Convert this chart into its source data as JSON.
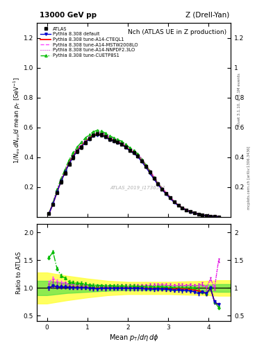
{
  "title_top": "13000 GeV pp",
  "title_right": "Z (Drell-Yan)",
  "plot_title": "Nch (ATLAS UE in Z production)",
  "xlabel": "Mean $p_\\mathrm{T}/d\\eta\\,d\\phi$",
  "ylabel_main": "$1/N_\\mathrm{ev}\\,dN_\\mathrm{ev}/d$ mean $p_\\mathrm{T}$ [GeV$^{-1}$]",
  "ylabel_ratio": "Ratio to ATLAS",
  "watermark": "ATLAS_2019_I1736531",
  "rivet_label": "Rivet 3.1.10, ≥ 3.1M events",
  "arxiv_label": "mcplots.cern.ch [arXiv:1306.3436]",
  "colors": {
    "atlas": "#000000",
    "default": "#0000cc",
    "cteql1": "#ff0000",
    "mstw": "#ff44ff",
    "nnpdf": "#cc00cc",
    "cuetp": "#00bb00"
  },
  "band_yellow": "#ffff44",
  "band_green": "#44dd44",
  "main_ylim": [
    0.0,
    1.3
  ],
  "main_yticks": [
    0.2,
    0.4,
    0.6,
    0.8,
    1.0,
    1.2
  ],
  "ratio_ylim": [
    0.4,
    2.15
  ],
  "ratio_yticks": [
    0.5,
    1.0,
    1.5,
    2.0
  ],
  "xlim": [
    -0.25,
    4.55
  ],
  "xticks": [
    0,
    1,
    2,
    3,
    4
  ],
  "x_main": [
    0.05,
    0.15,
    0.25,
    0.35,
    0.45,
    0.55,
    0.65,
    0.75,
    0.85,
    0.95,
    1.05,
    1.15,
    1.25,
    1.35,
    1.45,
    1.55,
    1.65,
    1.75,
    1.85,
    1.95,
    2.05,
    2.15,
    2.25,
    2.35,
    2.45,
    2.55,
    2.65,
    2.75,
    2.85,
    2.95,
    3.05,
    3.15,
    3.25,
    3.35,
    3.45,
    3.55,
    3.65,
    3.75,
    3.85,
    3.95,
    4.05,
    4.15,
    4.25
  ],
  "atlas_y": [
    0.022,
    0.085,
    0.165,
    0.235,
    0.295,
    0.355,
    0.4,
    0.44,
    0.468,
    0.498,
    0.525,
    0.548,
    0.558,
    0.552,
    0.54,
    0.522,
    0.512,
    0.502,
    0.49,
    0.47,
    0.448,
    0.43,
    0.41,
    0.375,
    0.34,
    0.3,
    0.26,
    0.222,
    0.188,
    0.158,
    0.13,
    0.102,
    0.08,
    0.062,
    0.048,
    0.036,
    0.028,
    0.02,
    0.014,
    0.01,
    0.006,
    0.004,
    0.002
  ],
  "atlas_err": [
    0.004,
    0.006,
    0.008,
    0.01,
    0.011,
    0.012,
    0.012,
    0.012,
    0.011,
    0.011,
    0.011,
    0.011,
    0.011,
    0.011,
    0.01,
    0.01,
    0.01,
    0.01,
    0.009,
    0.009,
    0.009,
    0.009,
    0.008,
    0.008,
    0.008,
    0.007,
    0.007,
    0.006,
    0.006,
    0.005,
    0.005,
    0.004,
    0.004,
    0.003,
    0.003,
    0.003,
    0.002,
    0.002,
    0.002,
    0.001,
    0.001,
    0.001,
    0.001
  ],
  "default_y": [
    0.022,
    0.088,
    0.168,
    0.24,
    0.3,
    0.358,
    0.402,
    0.442,
    0.47,
    0.5,
    0.522,
    0.542,
    0.55,
    0.548,
    0.535,
    0.518,
    0.508,
    0.498,
    0.486,
    0.466,
    0.444,
    0.426,
    0.405,
    0.37,
    0.334,
    0.294,
    0.254,
    0.218,
    0.184,
    0.154,
    0.126,
    0.098,
    0.077,
    0.059,
    0.046,
    0.034,
    0.026,
    0.018,
    0.013,
    0.009,
    0.006,
    0.003,
    0.002
  ],
  "cteql1_y": [
    0.022,
    0.088,
    0.168,
    0.24,
    0.302,
    0.362,
    0.406,
    0.446,
    0.474,
    0.504,
    0.526,
    0.548,
    0.556,
    0.552,
    0.54,
    0.522,
    0.512,
    0.502,
    0.49,
    0.47,
    0.448,
    0.43,
    0.408,
    0.374,
    0.338,
    0.298,
    0.258,
    0.22,
    0.186,
    0.156,
    0.128,
    0.1,
    0.079,
    0.061,
    0.047,
    0.035,
    0.027,
    0.019,
    0.013,
    0.009,
    0.006,
    0.003,
    0.002
  ],
  "mstw_y": [
    0.024,
    0.092,
    0.175,
    0.248,
    0.312,
    0.374,
    0.42,
    0.46,
    0.49,
    0.52,
    0.542,
    0.562,
    0.572,
    0.568,
    0.556,
    0.538,
    0.528,
    0.518,
    0.506,
    0.486,
    0.464,
    0.446,
    0.425,
    0.39,
    0.354,
    0.314,
    0.272,
    0.234,
    0.198,
    0.166,
    0.136,
    0.106,
    0.084,
    0.065,
    0.05,
    0.038,
    0.029,
    0.021,
    0.015,
    0.01,
    0.007,
    0.004,
    0.003
  ],
  "nnpdf_y": [
    0.023,
    0.09,
    0.172,
    0.244,
    0.307,
    0.368,
    0.413,
    0.453,
    0.482,
    0.512,
    0.534,
    0.554,
    0.564,
    0.56,
    0.548,
    0.53,
    0.52,
    0.51,
    0.498,
    0.478,
    0.456,
    0.438,
    0.417,
    0.382,
    0.346,
    0.306,
    0.265,
    0.227,
    0.192,
    0.161,
    0.132,
    0.103,
    0.081,
    0.063,
    0.049,
    0.037,
    0.028,
    0.02,
    0.014,
    0.01,
    0.007,
    0.004,
    0.003
  ],
  "cuetp_y": [
    0.026,
    0.098,
    0.185,
    0.258,
    0.322,
    0.384,
    0.43,
    0.47,
    0.5,
    0.53,
    0.552,
    0.572,
    0.582,
    0.576,
    0.562,
    0.544,
    0.532,
    0.52,
    0.508,
    0.488,
    0.464,
    0.446,
    0.422,
    0.386,
    0.348,
    0.308,
    0.266,
    0.228,
    0.192,
    0.16,
    0.132,
    0.102,
    0.08,
    0.062,
    0.048,
    0.036,
    0.028,
    0.019,
    0.013,
    0.009,
    0.006,
    0.003,
    0.002
  ],
  "rx": [
    0.05,
    0.15,
    0.25,
    0.35,
    0.45,
    0.55,
    0.65,
    0.75,
    0.85,
    0.95,
    1.05,
    1.15,
    1.25,
    1.35,
    1.45,
    1.55,
    1.65,
    1.75,
    1.85,
    1.95,
    2.05,
    2.15,
    2.25,
    2.35,
    2.45,
    2.55,
    2.65,
    2.75,
    2.85,
    2.95,
    3.05,
    3.15,
    3.25,
    3.35,
    3.45,
    3.55,
    3.65,
    3.75,
    3.85,
    3.95,
    4.05,
    4.15,
    4.25
  ],
  "ratio_default": [
    1.0,
    1.04,
    1.02,
    1.02,
    1.02,
    1.01,
    1.005,
    1.005,
    1.004,
    1.004,
    0.994,
    0.989,
    0.986,
    0.993,
    0.99,
    0.993,
    0.993,
    0.993,
    0.993,
    0.991,
    0.991,
    0.991,
    0.988,
    0.987,
    0.982,
    0.98,
    0.977,
    0.982,
    0.979,
    0.975,
    0.969,
    0.961,
    0.963,
    0.952,
    0.958,
    0.944,
    0.929,
    0.9,
    0.929,
    0.9,
    1.0,
    0.75,
    0.7
  ],
  "ratio_cteql1": [
    1.0,
    1.04,
    1.02,
    1.02,
    1.02,
    1.02,
    1.015,
    1.014,
    1.013,
    1.012,
    1.002,
    1.0,
    0.997,
    1.0,
    1.0,
    1.0,
    1.0,
    1.0,
    1.0,
    1.0,
    1.0,
    1.0,
    0.995,
    0.997,
    0.994,
    0.993,
    0.992,
    0.991,
    0.99,
    0.987,
    0.985,
    0.98,
    0.988,
    0.984,
    0.979,
    0.972,
    0.964,
    0.95,
    0.929,
    0.9,
    1.0,
    0.75,
    0.7
  ],
  "ratio_mstw": [
    1.1,
    1.18,
    1.12,
    1.1,
    1.09,
    1.07,
    1.065,
    1.06,
    1.055,
    1.05,
    1.033,
    1.026,
    1.025,
    1.029,
    1.03,
    1.031,
    1.031,
    1.032,
    1.033,
    1.034,
    1.036,
    1.037,
    1.037,
    1.04,
    1.041,
    1.047,
    1.046,
    1.054,
    1.053,
    1.051,
    1.046,
    1.039,
    1.05,
    1.048,
    1.042,
    1.056,
    1.036,
    1.05,
    1.071,
    1.0,
    1.167,
    1.0,
    1.5
  ],
  "ratio_nnpdf": [
    1.05,
    1.12,
    1.09,
    1.08,
    1.07,
    1.06,
    1.058,
    1.056,
    1.053,
    1.05,
    1.033,
    1.026,
    1.025,
    1.029,
    1.03,
    1.031,
    1.031,
    1.032,
    1.033,
    1.034,
    1.036,
    1.037,
    1.037,
    1.04,
    1.041,
    1.047,
    1.046,
    1.054,
    1.053,
    1.051,
    1.046,
    1.039,
    1.05,
    1.048,
    1.042,
    1.056,
    1.036,
    1.05,
    1.071,
    1.0,
    1.167,
    1.0,
    1.5
  ],
  "ratio_cuetp": [
    1.55,
    1.65,
    1.35,
    1.22,
    1.18,
    1.11,
    1.1,
    1.09,
    1.085,
    1.075,
    1.052,
    1.044,
    1.043,
    1.043,
    1.041,
    1.042,
    1.039,
    1.035,
    1.037,
    1.038,
    1.036,
    1.037,
    1.029,
    1.029,
    1.024,
    1.027,
    1.023,
    1.027,
    1.021,
    1.013,
    1.015,
    1.0,
    1.0,
    1.0,
    1.0,
    1.0,
    1.0,
    0.95,
    0.929,
    0.9,
    1.0,
    0.75,
    0.65
  ],
  "ratio_err": 0.03,
  "band_x": [
    -0.25,
    0.0,
    0.5,
    1.0,
    1.5,
    2.0,
    2.5,
    3.0,
    3.5,
    4.0,
    4.25,
    4.55
  ],
  "band_yellow_lo": [
    0.72,
    0.72,
    0.78,
    0.83,
    0.87,
    0.89,
    0.89,
    0.89,
    0.88,
    0.87,
    0.86,
    0.86
  ],
  "band_yellow_hi": [
    1.28,
    1.28,
    1.22,
    1.17,
    1.13,
    1.11,
    1.11,
    1.11,
    1.12,
    1.13,
    1.14,
    1.14
  ],
  "band_green_lo": [
    0.87,
    0.87,
    0.91,
    0.93,
    0.95,
    0.96,
    0.96,
    0.96,
    0.95,
    0.94,
    0.93,
    0.93
  ],
  "band_green_hi": [
    1.13,
    1.13,
    1.09,
    1.07,
    1.05,
    1.04,
    1.04,
    1.04,
    1.05,
    1.06,
    1.07,
    1.07
  ]
}
